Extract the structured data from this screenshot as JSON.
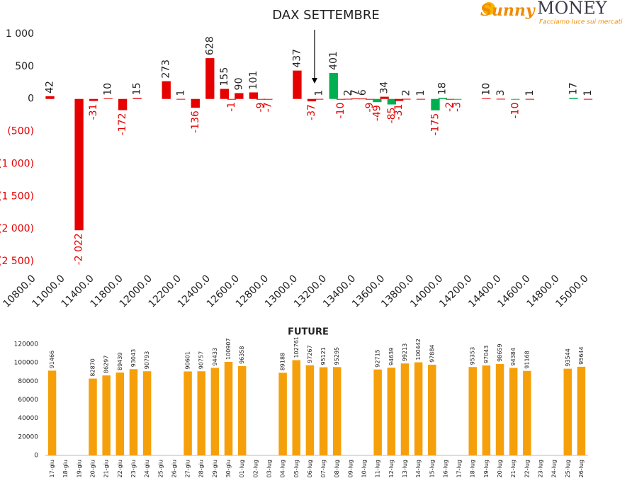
{
  "logo": {
    "brand_a": "Sunny",
    "brand_b": "MONEY",
    "tagline": "Facciamo luce sui mercati"
  },
  "chart_data": [
    {
      "type": "bar",
      "title": "DAX SETTEMBRE",
      "categories": [
        "10800.0",
        null,
        null,
        null,
        "11000.0",
        null,
        null,
        null,
        "11400.0",
        null,
        null,
        null,
        "11800.0",
        null,
        null,
        null,
        "12000.0",
        null,
        null,
        null,
        "12200.0",
        null,
        null,
        null,
        "12400.0",
        null,
        null,
        null,
        "12600.0",
        null,
        null,
        null,
        "12800.0",
        null,
        null,
        null,
        "13000.0",
        null,
        null,
        null,
        "13200.0",
        null,
        null,
        null,
        "13400.0",
        null,
        null,
        null,
        "13600.0",
        null,
        null,
        null,
        "13800.0",
        null,
        null,
        null,
        "14000.0",
        null,
        null,
        null,
        "14200.0",
        null,
        null,
        null,
        "14400.0",
        null,
        null,
        null,
        "14600.0",
        null,
        null,
        null,
        "14800.0",
        null,
        null,
        null,
        "15000.0"
      ],
      "values": [
        null,
        null,
        42,
        null,
        null,
        null,
        -2022,
        null,
        -31,
        null,
        10,
        null,
        -172,
        null,
        15,
        null,
        null,
        null,
        273,
        null,
        1,
        null,
        -136,
        null,
        628,
        null,
        155,
        -1,
        90,
        null,
        101,
        -9,
        -7,
        null,
        null,
        null,
        437,
        null,
        -37,
        1,
        null,
        401,
        -10,
        2,
        7,
        6,
        -9,
        -49,
        34,
        -85,
        -31,
        2,
        null,
        1,
        null,
        -175,
        18,
        -2,
        -3,
        null,
        null,
        null,
        10,
        null,
        3,
        null,
        -10,
        null,
        1,
        null,
        null,
        null,
        null,
        null,
        17,
        null,
        1
      ],
      "value_labels": [
        null,
        null,
        "42",
        null,
        null,
        null,
        "-2 022",
        null,
        "-31",
        null,
        "10",
        null,
        "-172",
        null,
        "15",
        null,
        null,
        null,
        "273",
        null,
        "1",
        null,
        "-136",
        null,
        "628",
        null,
        "155",
        "-1",
        "90",
        null,
        "101",
        "-9",
        "-7",
        null,
        null,
        null,
        "437",
        null,
        "-37",
        "1",
        null,
        "401",
        "-10",
        "2",
        "7",
        "6",
        "-9",
        "-49",
        "34",
        "-85",
        "-31",
        "2",
        null,
        "1",
        null,
        "-175",
        "18",
        "-2",
        "-3",
        null,
        null,
        null,
        "10",
        null,
        "3",
        null,
        "-10",
        null,
        "1",
        null,
        null,
        null,
        null,
        null,
        "17",
        null,
        "1"
      ],
      "colors": [
        null,
        null,
        "#e60000",
        null,
        null,
        null,
        "#e60000",
        null,
        "#e60000",
        null,
        "#e60000",
        null,
        "#e60000",
        null,
        "#e60000",
        null,
        null,
        null,
        "#e60000",
        null,
        "#e60000",
        null,
        "#e60000",
        null,
        "#e60000",
        null,
        "#e60000",
        "#e60000",
        "#e60000",
        null,
        "#e60000",
        "#e60000",
        "#e60000",
        null,
        null,
        null,
        "#e60000",
        null,
        "#e60000",
        "#e60000",
        null,
        "#00b050",
        "#e60000",
        "#e60000",
        "#e60000",
        "#e60000",
        "#e60000",
        "#00b050",
        "#e60000",
        "#00b050",
        "#e60000",
        "#e60000",
        null,
        "#e60000",
        null,
        "#00b050",
        "#00b050",
        "#e60000",
        "#00b050",
        null,
        null,
        null,
        "#e60000",
        null,
        "#e60000",
        null,
        "#00b050",
        null,
        "#e60000",
        null,
        null,
        null,
        null,
        null,
        "#00b050",
        null,
        "#e60000"
      ],
      "negative_label_color": "#e60000",
      "ylim": [
        -2500,
        1000
      ],
      "yticks": [
        {
          "value": 1000,
          "label": "1 000"
        },
        500,
        0,
        {
          "value": -500,
          "label": "(500)"
        },
        {
          "value": -1000,
          "label": "(1 000)"
        },
        {
          "value": -1500,
          "label": "(1 500)"
        },
        {
          "value": -2000,
          "label": "(2 000)"
        },
        {
          "value": -2500,
          "label": "(2 500)"
        }
      ],
      "grid": false
    },
    {
      "type": "bar",
      "title": "FUTURE",
      "categories": [
        "17-giu",
        "18-giu",
        "19-giu",
        "20-giu",
        "21-giu",
        "22-giu",
        "23-giu",
        "24-giu",
        "25-giu",
        "26-giu",
        "27-giu",
        "28-giu",
        "29-giu",
        "30-giu",
        "01-lug",
        "02-lug",
        "03-lug",
        "04-lug",
        "05-lug",
        "06-lug",
        "07-lug",
        "08-lug",
        "09-lug",
        "10-lug",
        "11-lug",
        "12-lug",
        "13-lug",
        "14-lug",
        "15-lug",
        "16-lug",
        "17-lug",
        "18-lug",
        "19-lug",
        "20-lug",
        "21-lug",
        "22-lug",
        "23-lug",
        "24-lug",
        "25-lug",
        "26-lug"
      ],
      "values": [
        91466,
        null,
        null,
        82870,
        86297,
        89439,
        93043,
        90793,
        null,
        null,
        90601,
        90757,
        94433,
        100907,
        96358,
        null,
        null,
        89188,
        102761,
        97267,
        95121,
        95295,
        null,
        null,
        92715,
        94639,
        99213,
        100442,
        97884,
        null,
        null,
        95353,
        97043,
        98659,
        94384,
        91168,
        null,
        null,
        93544,
        95644
      ],
      "color": "#f5a00a",
      "ylim": [
        0,
        120000
      ],
      "yticks": [
        0,
        20000,
        40000,
        60000,
        80000,
        100000,
        120000
      ],
      "grid": false
    }
  ]
}
